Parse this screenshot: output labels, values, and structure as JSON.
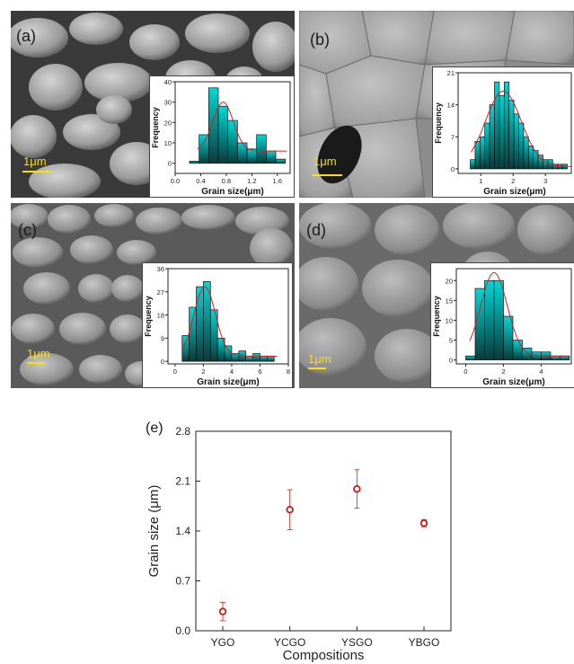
{
  "panels": [
    {
      "label": "(a)",
      "scale": "1μm"
    },
    {
      "label": "(b)",
      "scale": "1μm"
    },
    {
      "label": "(c)",
      "scale": "1μm"
    },
    {
      "label": "(d)",
      "scale": "1μm"
    },
    {
      "label": "(e)"
    }
  ],
  "chart_data": [
    {
      "type": "bar",
      "panel": "(a)",
      "xlabel": "Grain size(μm)",
      "ylabel": "Frequency",
      "x": [
        0.3,
        0.45,
        0.6,
        0.75,
        0.9,
        1.05,
        1.2,
        1.35,
        1.5,
        1.65
      ],
      "values": [
        1,
        14,
        37,
        28,
        21,
        10,
        7,
        14,
        6,
        2
      ],
      "bin_width": 0.15,
      "xlim": [
        0.0,
        1.8
      ],
      "ylim": [
        -5,
        40
      ],
      "xticks": [
        "0.0",
        "0.4",
        "0.8",
        "1.2",
        "1.6"
      ],
      "xtick_values": [
        0.0,
        0.4,
        0.8,
        1.2,
        1.6
      ],
      "yticks": [
        "0",
        "10",
        "20",
        "30",
        "40"
      ],
      "ytick_values": [
        0,
        10,
        20,
        30,
        40
      ],
      "fit": {
        "type": "gaussian",
        "amplitude": 24,
        "center": 0.75,
        "sigma": 0.16,
        "baseline": 6,
        "x_range": [
          0.35,
          1.75
        ]
      },
      "bar_color": "#00d8d8",
      "fit_color": "#d62020"
    },
    {
      "type": "bar",
      "panel": "(b)",
      "xlabel": "Grain size(μm)",
      "ylabel": "Frequency",
      "x": [
        0.75,
        0.9,
        1.05,
        1.2,
        1.35,
        1.5,
        1.65,
        1.8,
        1.95,
        2.1,
        2.25,
        2.4,
        2.55,
        2.7,
        2.85,
        3.0,
        3.15,
        3.3,
        3.45,
        3.6
      ],
      "values": [
        2,
        6,
        7,
        10,
        14,
        19,
        16,
        19,
        15,
        12,
        10,
        7,
        5,
        4,
        3,
        2,
        2,
        1,
        1,
        1
      ],
      "bin_width": 0.15,
      "xlim": [
        0.3,
        3.8
      ],
      "ylim": [
        -1,
        21
      ],
      "xticks": [
        "1",
        "2",
        "3"
      ],
      "xtick_values": [
        1,
        2,
        3
      ],
      "yticks": [
        "0",
        "7",
        "14",
        "21"
      ],
      "ytick_values": [
        0,
        7,
        14,
        21
      ],
      "fit": {
        "type": "gaussian",
        "amplitude": 16.5,
        "center": 1.7,
        "sigma": 0.55,
        "baseline": 0.5,
        "x_range": [
          0.7,
          3.8
        ]
      },
      "bar_color": "#00d8d8",
      "fit_color": "#d62020"
    },
    {
      "type": "bar",
      "panel": "(c)",
      "xlabel": "Grain size(μm)",
      "ylabel": "Frequency",
      "x": [
        0.75,
        1.25,
        1.75,
        2.25,
        2.75,
        3.25,
        3.75,
        4.25,
        4.75,
        5.25,
        5.75,
        6.25,
        6.75
      ],
      "values": [
        10,
        21,
        29,
        31,
        20,
        9,
        6,
        3,
        4,
        2,
        3,
        2,
        2
      ],
      "bin_width": 0.5,
      "xlim": [
        -0.5,
        8
      ],
      "ylim": [
        -1,
        36
      ],
      "xticks": [
        "0",
        "2",
        "4",
        "6",
        "8"
      ],
      "xtick_values": [
        0,
        2,
        4,
        6,
        8
      ],
      "yticks": [
        "0",
        "9",
        "18",
        "27",
        "36"
      ],
      "ytick_values": [
        0,
        9,
        18,
        27,
        36
      ],
      "fit": {
        "type": "gaussian",
        "amplitude": 27,
        "center": 2.1,
        "sigma": 0.75,
        "baseline": 2,
        "x_range": [
          0.5,
          7.2
        ]
      },
      "bar_color": "#00d8d8",
      "fit_color": "#d62020"
    },
    {
      "type": "bar",
      "panel": "(d)",
      "xlabel": "Grain size(μm)",
      "ylabel": "Frequency",
      "x": [
        0.25,
        0.75,
        1.25,
        1.75,
        2.25,
        2.75,
        3.25,
        3.75,
        4.25,
        4.75,
        5.25
      ],
      "values": [
        1,
        18,
        20,
        20,
        11,
        5,
        3,
        2,
        2,
        1,
        1
      ],
      "bin_width": 0.5,
      "xlim": [
        -0.5,
        5.6
      ],
      "ylim": [
        -1,
        23
      ],
      "xticks": [
        "0",
        "2",
        "4"
      ],
      "xtick_values": [
        0,
        2,
        4
      ],
      "yticks": [
        "0",
        "5",
        "10",
        "15",
        "20"
      ],
      "ytick_values": [
        0,
        5,
        10,
        15,
        20
      ],
      "fit": {
        "type": "gaussian",
        "amplitude": 21,
        "center": 1.5,
        "sigma": 0.7,
        "baseline": 1,
        "x_range": [
          0.2,
          5.4
        ]
      },
      "bar_color": "#00d8d8",
      "fit_color": "#d62020"
    },
    {
      "type": "scatter",
      "panel": "(e)",
      "categories": [
        "YGO",
        "YCGO",
        "YSGO",
        "YBGO"
      ],
      "values": [
        0.27,
        1.7,
        1.99,
        1.51
      ],
      "errors": [
        0.13,
        0.28,
        0.27,
        0.05
      ],
      "xlabel": "Compositions",
      "ylabel": "Grain size (μm)",
      "ylim": [
        0.0,
        2.8
      ],
      "yticks": [
        "0.0",
        "0.7",
        "1.4",
        "2.1",
        "2.8"
      ],
      "ytick_values": [
        0.0,
        0.7,
        1.4,
        2.1,
        2.8
      ],
      "marker_color": "#cc1a1a"
    }
  ]
}
